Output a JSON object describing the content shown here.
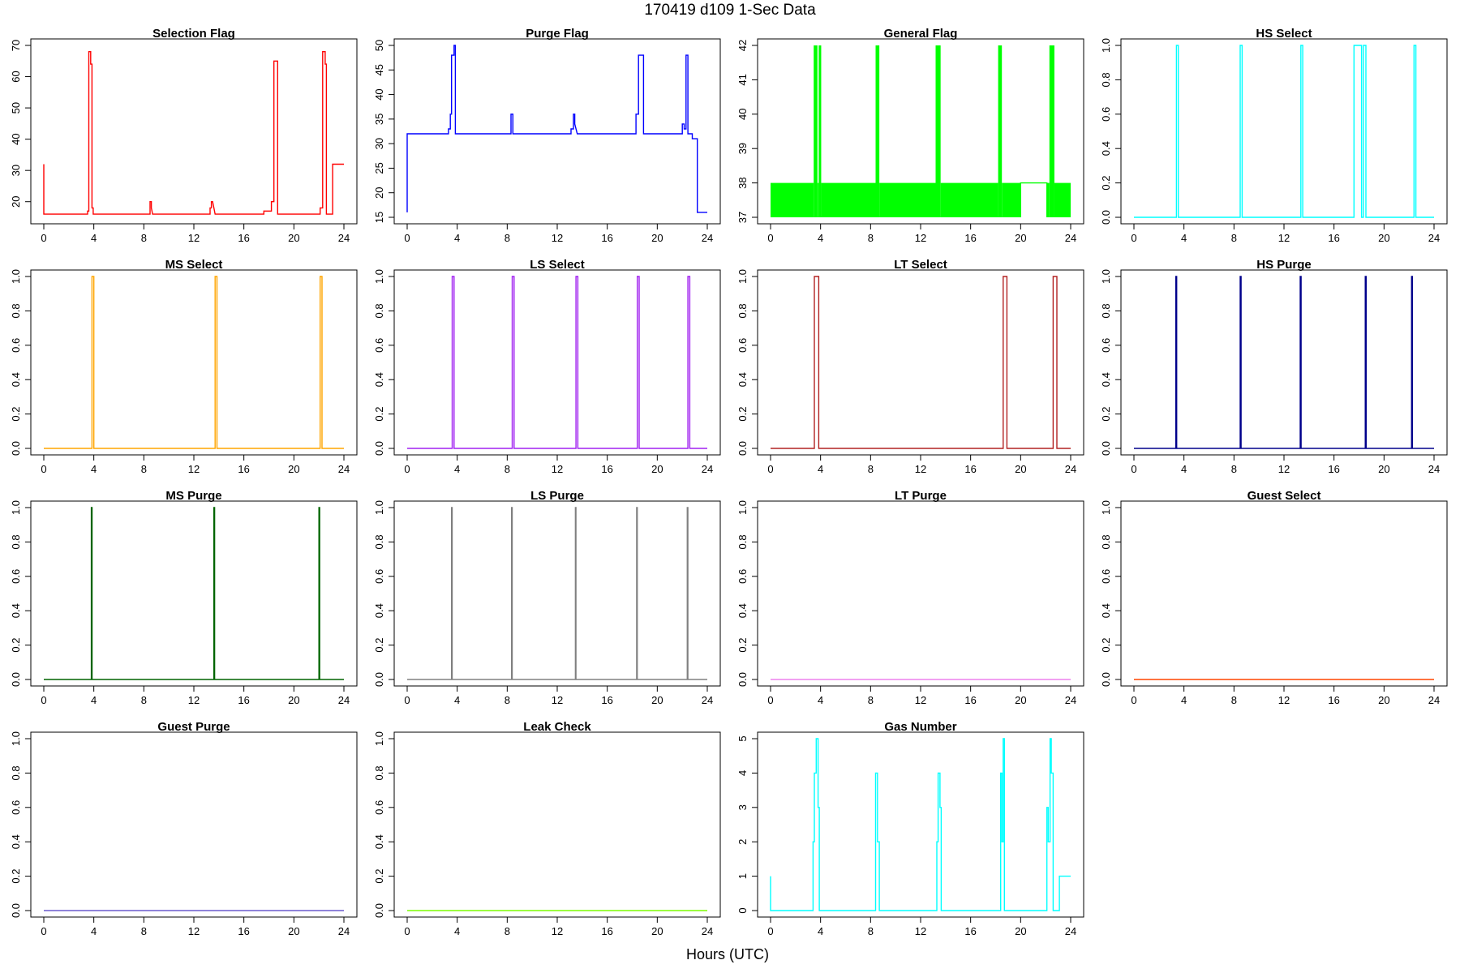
{
  "figure": {
    "title": "170419   d109   1-Sec Data",
    "xlabel": "Hours (UTC)"
  },
  "chart_data": [
    {
      "type": "line",
      "title": "Selection Flag",
      "color": "#ff0000",
      "xlim": [
        0,
        24
      ],
      "xticks": [
        0,
        4,
        8,
        12,
        16,
        20,
        24
      ],
      "ylim": [
        15,
        70
      ],
      "yticks": [
        20,
        30,
        40,
        50,
        60,
        70
      ],
      "x": [
        0,
        0,
        3.5,
        3.5,
        3.6,
        3.6,
        3.75,
        3.75,
        3.85,
        3.85,
        3.95,
        3.95,
        8.5,
        8.5,
        8.6,
        8.6,
        8.7,
        13.3,
        13.3,
        13.4,
        13.4,
        13.5,
        13.6,
        13.7,
        17.6,
        17.6,
        18.2,
        18.2,
        18.4,
        18.4,
        18.7,
        18.7,
        22.1,
        22.1,
        22.3,
        22.3,
        22.5,
        22.5,
        22.6,
        22.6,
        22.7,
        22.7,
        23.1,
        23.1,
        24
      ],
      "y": [
        32,
        16,
        16,
        17,
        17,
        68,
        68,
        64,
        64,
        18,
        18,
        16,
        16,
        20,
        20,
        18,
        16,
        16,
        18,
        18,
        20,
        20,
        18,
        16,
        16,
        17,
        17,
        20,
        20,
        65,
        65,
        16,
        16,
        18,
        18,
        68,
        68,
        64,
        64,
        16,
        16,
        16,
        16,
        32,
        32
      ]
    },
    {
      "type": "line",
      "title": "Purge Flag",
      "color": "#0000ff",
      "xlim": [
        0,
        24
      ],
      "xticks": [
        0,
        4,
        8,
        12,
        16,
        20,
        24
      ],
      "ylim": [
        15,
        50
      ],
      "yticks": [
        15,
        20,
        25,
        30,
        35,
        40,
        45,
        50
      ],
      "x": [
        0,
        0,
        3.3,
        3.3,
        3.45,
        3.45,
        3.55,
        3.55,
        3.75,
        3.75,
        3.85,
        3.85,
        8.3,
        8.3,
        8.45,
        8.45,
        13.1,
        13.1,
        13.3,
        13.3,
        13.4,
        13.4,
        13.6,
        18.3,
        18.3,
        18.5,
        18.5,
        18.9,
        18.9,
        22.0,
        22.0,
        22.15,
        22.15,
        22.3,
        22.3,
        22.45,
        22.45,
        22.8,
        22.8,
        23.2,
        23.2,
        24
      ],
      "y": [
        16,
        32,
        32,
        33,
        33,
        36,
        36,
        48,
        48,
        50,
        50,
        32,
        32,
        36,
        36,
        32,
        32,
        33,
        33,
        36,
        36,
        34,
        32,
        32,
        36,
        36,
        48,
        48,
        32,
        32,
        34,
        34,
        33,
        33,
        48,
        48,
        32,
        32,
        31,
        31,
        16,
        16
      ]
    },
    {
      "type": "area",
      "title": "General Flag",
      "color": "#00ff00",
      "xlim": [
        0,
        24
      ],
      "xticks": [
        0,
        4,
        8,
        12,
        16,
        20,
        24
      ],
      "ylim": [
        37,
        42
      ],
      "yticks": [
        37,
        38,
        39,
        40,
        41,
        42
      ],
      "bands": [
        {
          "x0": 0,
          "x1": 3.45,
          "y0": 37,
          "y1": 38
        },
        {
          "x0": 3.45,
          "x1": 3.75,
          "y0": 37,
          "y1": 42
        },
        {
          "x0": 3.75,
          "x1": 3.85,
          "y0": 37,
          "y1": 38
        },
        {
          "x0": 3.85,
          "x1": 4.05,
          "y0": 37,
          "y1": 42
        },
        {
          "x0": 4.05,
          "x1": 8.4,
          "y0": 37,
          "y1": 38
        },
        {
          "x0": 8.4,
          "x1": 8.7,
          "y0": 37,
          "y1": 42
        },
        {
          "x0": 8.7,
          "x1": 13.2,
          "y0": 37,
          "y1": 38
        },
        {
          "x0": 13.2,
          "x1": 13.6,
          "y0": 37,
          "y1": 42
        },
        {
          "x0": 13.6,
          "x1": 18.2,
          "y0": 37,
          "y1": 38
        },
        {
          "x0": 18.2,
          "x1": 18.5,
          "y0": 37,
          "y1": 42
        },
        {
          "x0": 18.5,
          "x1": 20.0,
          "y0": 37,
          "y1": 38
        },
        {
          "x0": 22.1,
          "x1": 22.3,
          "y0": 37,
          "y1": 38
        },
        {
          "x0": 22.3,
          "x1": 22.7,
          "y0": 37,
          "y1": 42
        },
        {
          "x0": 22.7,
          "x1": 24,
          "y0": 37,
          "y1": 38
        }
      ],
      "x": [
        20.0,
        20.0,
        22.1,
        22.1
      ],
      "y": [
        37,
        38,
        38,
        37
      ]
    },
    {
      "type": "line",
      "title": "HS Select",
      "color": "#00ffff",
      "xlim": [
        0,
        24
      ],
      "xticks": [
        0,
        4,
        8,
        12,
        16,
        20,
        24
      ],
      "ylim": [
        0,
        1
      ],
      "yticks": [
        0.0,
        0.2,
        0.4,
        0.6,
        0.8,
        1.0
      ],
      "x": [
        0,
        3.4,
        3.4,
        3.55,
        3.55,
        8.5,
        8.5,
        8.65,
        8.65,
        13.35,
        13.35,
        13.5,
        13.5,
        17.6,
        17.6,
        18.2,
        18.2,
        18.35,
        18.35,
        18.55,
        18.55,
        22.4,
        22.4,
        22.55,
        22.55,
        24
      ],
      "y": [
        0,
        0,
        1,
        1,
        0,
        0,
        1,
        1,
        0,
        0,
        1,
        1,
        0,
        0,
        1,
        1,
        0,
        0,
        1,
        1,
        0,
        0,
        1,
        1,
        0,
        0
      ]
    },
    {
      "type": "line",
      "title": "MS Select",
      "color": "#ffa500",
      "xlim": [
        0,
        24
      ],
      "xticks": [
        0,
        4,
        8,
        12,
        16,
        20,
        24
      ],
      "ylim": [
        0,
        1
      ],
      "yticks": [
        0.0,
        0.2,
        0.4,
        0.6,
        0.8,
        1.0
      ],
      "x": [
        0,
        3.85,
        3.85,
        4.0,
        4.0,
        13.7,
        13.7,
        13.85,
        13.85,
        22.1,
        22.1,
        22.25,
        22.25,
        24
      ],
      "y": [
        0,
        0,
        1,
        1,
        0,
        0,
        1,
        1,
        0,
        0,
        1,
        1,
        0,
        0
      ]
    },
    {
      "type": "line",
      "title": "LS Select",
      "color": "#a020f0",
      "xlim": [
        0,
        24
      ],
      "xticks": [
        0,
        4,
        8,
        12,
        16,
        20,
        24
      ],
      "ylim": [
        0,
        1
      ],
      "yticks": [
        0.0,
        0.2,
        0.4,
        0.6,
        0.8,
        1.0
      ],
      "x": [
        0,
        3.6,
        3.6,
        3.75,
        3.75,
        8.4,
        8.4,
        8.55,
        8.55,
        13.5,
        13.5,
        13.65,
        13.65,
        18.4,
        18.4,
        18.55,
        18.55,
        22.45,
        22.45,
        22.6,
        22.6,
        24
      ],
      "y": [
        0,
        0,
        1,
        1,
        0,
        0,
        1,
        1,
        0,
        0,
        1,
        1,
        0,
        0,
        1,
        1,
        0,
        0,
        1,
        1,
        0,
        0
      ]
    },
    {
      "type": "line",
      "title": "LT Select",
      "color": "#b22222",
      "xlim": [
        0,
        24
      ],
      "xticks": [
        0,
        4,
        8,
        12,
        16,
        20,
        24
      ],
      "ylim": [
        0,
        1
      ],
      "yticks": [
        0.0,
        0.2,
        0.4,
        0.6,
        0.8,
        1.0
      ],
      "x": [
        0,
        3.5,
        3.5,
        3.85,
        3.85,
        18.6,
        18.6,
        18.9,
        18.9,
        22.6,
        22.6,
        22.9,
        22.9,
        24
      ],
      "y": [
        0,
        0,
        1,
        1,
        0,
        0,
        1,
        1,
        0,
        0,
        1,
        1,
        0,
        0
      ]
    },
    {
      "type": "line",
      "title": "HS Purge",
      "color": "#00008b",
      "xlim": [
        0,
        24
      ],
      "xticks": [
        0,
        4,
        8,
        12,
        16,
        20,
        24
      ],
      "ylim": [
        0,
        1
      ],
      "yticks": [
        0.0,
        0.2,
        0.4,
        0.6,
        0.8,
        1.0
      ],
      "x": [
        0,
        3.35,
        3.35,
        3.42,
        3.42,
        8.5,
        8.5,
        8.57,
        8.57,
        13.3,
        13.3,
        13.37,
        13.37,
        18.5,
        18.5,
        18.57,
        18.57,
        22.2,
        22.2,
        22.27,
        22.27,
        24
      ],
      "y": [
        0,
        0,
        1,
        1,
        0,
        0,
        1,
        1,
        0,
        0,
        1,
        1,
        0,
        0,
        1,
        1,
        0,
        0,
        1,
        1,
        0,
        0
      ]
    },
    {
      "type": "line",
      "title": "MS Purge",
      "color": "#006400",
      "xlim": [
        0,
        24
      ],
      "xticks": [
        0,
        4,
        8,
        12,
        16,
        20,
        24
      ],
      "ylim": [
        0,
        1
      ],
      "yticks": [
        0.0,
        0.2,
        0.4,
        0.6,
        0.8,
        1.0
      ],
      "x": [
        0,
        3.8,
        3.8,
        3.86,
        3.86,
        13.6,
        13.6,
        13.66,
        13.66,
        22.0,
        22.0,
        22.06,
        22.06,
        24
      ],
      "y": [
        0,
        0,
        1,
        1,
        0,
        0,
        1,
        1,
        0,
        0,
        1,
        1,
        0,
        0
      ]
    },
    {
      "type": "line",
      "title": "LS Purge",
      "color": "#808080",
      "xlim": [
        0,
        24
      ],
      "xticks": [
        0,
        4,
        8,
        12,
        16,
        20,
        24
      ],
      "ylim": [
        0,
        1
      ],
      "yticks": [
        0.0,
        0.2,
        0.4,
        0.6,
        0.8,
        1.0
      ],
      "x": [
        0,
        3.55,
        3.55,
        3.6,
        3.6,
        8.35,
        8.35,
        8.4,
        8.4,
        13.45,
        13.45,
        13.5,
        13.5,
        18.35,
        18.35,
        18.4,
        18.4,
        22.4,
        22.4,
        22.45,
        22.45,
        24
      ],
      "y": [
        0,
        0,
        1,
        1,
        0,
        0,
        1,
        1,
        0,
        0,
        1,
        1,
        0,
        0,
        1,
        1,
        0,
        0,
        1,
        1,
        0,
        0
      ]
    },
    {
      "type": "line",
      "title": "LT Purge",
      "color": "#ee82ee",
      "xlim": [
        0,
        24
      ],
      "xticks": [
        0,
        4,
        8,
        12,
        16,
        20,
        24
      ],
      "ylim": [
        0,
        1
      ],
      "yticks": [
        0.0,
        0.2,
        0.4,
        0.6,
        0.8,
        1.0
      ],
      "x": [
        0,
        24
      ],
      "y": [
        0,
        0
      ]
    },
    {
      "type": "line",
      "title": "Guest Select",
      "color": "#ff4500",
      "xlim": [
        0,
        24
      ],
      "xticks": [
        0,
        4,
        8,
        12,
        16,
        20,
        24
      ],
      "ylim": [
        0,
        1
      ],
      "yticks": [
        0.0,
        0.2,
        0.4,
        0.6,
        0.8,
        1.0
      ],
      "x": [
        0,
        24
      ],
      "y": [
        0,
        0
      ]
    },
    {
      "type": "line",
      "title": "Guest Purge",
      "color": "#6a5acd",
      "xlim": [
        0,
        24
      ],
      "xticks": [
        0,
        4,
        8,
        12,
        16,
        20,
        24
      ],
      "ylim": [
        0,
        1
      ],
      "yticks": [
        0.0,
        0.2,
        0.4,
        0.6,
        0.8,
        1.0
      ],
      "x": [
        0,
        24
      ],
      "y": [
        0,
        0
      ]
    },
    {
      "type": "line",
      "title": "Leak Check",
      "color": "#7cfc00",
      "xlim": [
        0,
        24
      ],
      "xticks": [
        0,
        4,
        8,
        12,
        16,
        20,
        24
      ],
      "ylim": [
        0,
        1
      ],
      "yticks": [
        0.0,
        0.2,
        0.4,
        0.6,
        0.8,
        1.0
      ],
      "x": [
        0,
        24
      ],
      "y": [
        0,
        0
      ]
    },
    {
      "type": "line",
      "title": "Gas Number",
      "color": "#00ffff",
      "xlim": [
        0,
        24
      ],
      "xticks": [
        0,
        4,
        8,
        12,
        16,
        20,
        24
      ],
      "ylim": [
        0,
        5
      ],
      "yticks": [
        0,
        1,
        2,
        3,
        4,
        5
      ],
      "x": [
        0,
        0,
        0.05,
        0.05,
        3.4,
        3.4,
        3.5,
        3.5,
        3.65,
        3.65,
        3.8,
        3.8,
        3.9,
        3.9,
        4.0,
        4.0,
        8.4,
        8.4,
        8.55,
        8.55,
        8.7,
        8.7,
        13.3,
        13.3,
        13.4,
        13.4,
        13.55,
        13.55,
        13.65,
        13.65,
        13.75,
        13.75,
        18.4,
        18.4,
        18.5,
        18.5,
        18.6,
        18.6,
        18.7,
        18.7,
        18.85,
        18.85,
        22.1,
        22.1,
        22.2,
        22.2,
        22.35,
        22.35,
        22.45,
        22.45,
        22.6,
        22.6,
        22.75,
        22.75,
        23.0,
        23.0,
        23.1,
        23.1,
        24
      ],
      "y": [
        1,
        0,
        0,
        0,
        0,
        2,
        2,
        4,
        4,
        5,
        5,
        3,
        3,
        0,
        0,
        0,
        0,
        4,
        4,
        2,
        2,
        0,
        0,
        2,
        2,
        4,
        4,
        3,
        3,
        0,
        0,
        0,
        0,
        4,
        4,
        2,
        2,
        5,
        5,
        0,
        0,
        0,
        0,
        3,
        3,
        2,
        2,
        5,
        5,
        4,
        4,
        0,
        0,
        0,
        0,
        0,
        0,
        1,
        1
      ]
    }
  ]
}
